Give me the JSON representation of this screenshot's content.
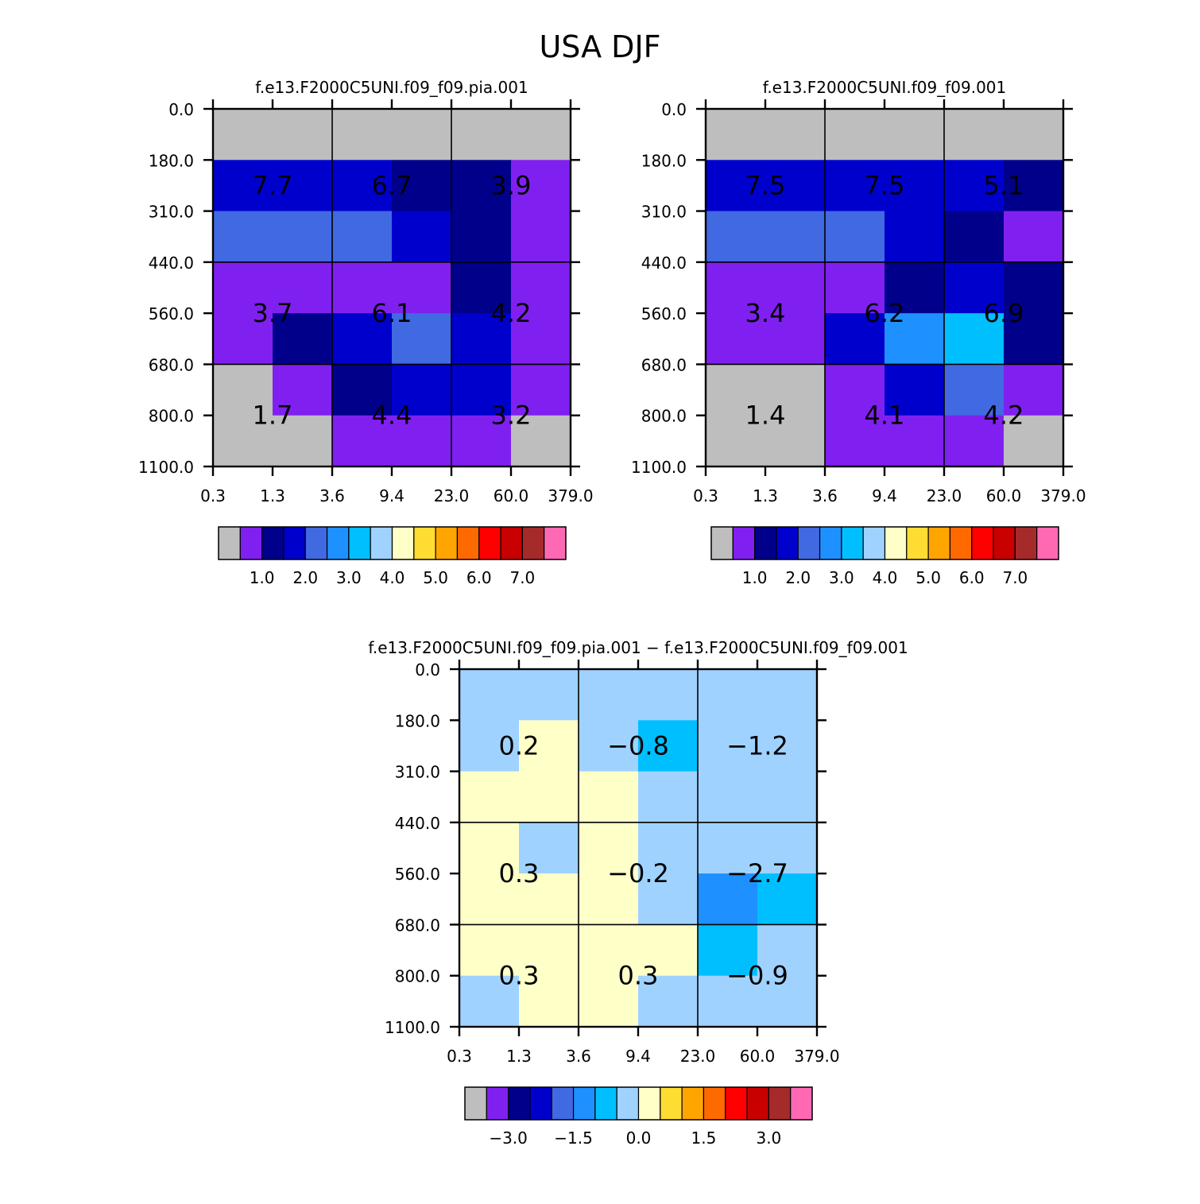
{
  "figure_title": "USA DJF",
  "chart_data": [
    {
      "id": "panel-a",
      "type": "heatmap",
      "title": "f.e13.F2000C5UNI.f09_f09.pia.001",
      "x_ticks": [
        "0.3",
        "1.3",
        "3.6",
        "9.4",
        "23.0",
        "60.0",
        "379.0"
      ],
      "y_ticks": [
        "0.0",
        "180.0",
        "310.0",
        "440.0",
        "560.0",
        "680.0",
        "800.0",
        "1100.0"
      ],
      "cell_colors": [
        [
          "#bebebe",
          "#bebebe",
          "#bebebe",
          "#bebebe",
          "#bebebe",
          "#bebebe"
        ],
        [
          "#0000cd",
          "#0000cd",
          "#0000cd",
          "#00008b",
          "#00008b",
          "#8020f0"
        ],
        [
          "#4169e1",
          "#4169e1",
          "#4169e1",
          "#0000cd",
          "#00008b",
          "#8020f0"
        ],
        [
          "#8020f0",
          "#8020f0",
          "#8020f0",
          "#8020f0",
          "#00008b",
          "#8020f0"
        ],
        [
          "#8020f0",
          "#00008b",
          "#0000cd",
          "#4169e1",
          "#0000cd",
          "#8020f0"
        ],
        [
          "#bebebe",
          "#8020f0",
          "#00008b",
          "#0000cd",
          "#0000cd",
          "#8020f0"
        ],
        [
          "#bebebe",
          "#bebebe",
          "#8020f0",
          "#8020f0",
          "#8020f0",
          "#bebebe"
        ]
      ],
      "box_values": [
        [
          "7.7",
          "6.7",
          "3.9"
        ],
        [
          "3.7",
          "6.1",
          "4.2"
        ],
        [
          "1.7",
          "4.4",
          "3.2"
        ]
      ],
      "colorbar": {
        "colors": [
          "#bebebe",
          "#8020f0",
          "#00008b",
          "#0000cd",
          "#4169e1",
          "#1e90ff",
          "#00bfff",
          "#a0d2ff",
          "#ffffc8",
          "#ffdc32",
          "#ffa500",
          "#ff6a00",
          "#ff0000",
          "#c80000",
          "#a52a2a",
          "#ff69b4"
        ],
        "tick_labels": [
          "1.0",
          "2.0",
          "3.0",
          "4.0",
          "5.0",
          "6.0",
          "7.0"
        ]
      }
    },
    {
      "id": "panel-b",
      "type": "heatmap",
      "title": "f.e13.F2000C5UNI.f09_f09.001",
      "x_ticks": [
        "0.3",
        "1.3",
        "3.6",
        "9.4",
        "23.0",
        "60.0",
        "379.0"
      ],
      "y_ticks": [
        "0.0",
        "180.0",
        "310.0",
        "440.0",
        "560.0",
        "680.0",
        "800.0",
        "1100.0"
      ],
      "cell_colors": [
        [
          "#bebebe",
          "#bebebe",
          "#bebebe",
          "#bebebe",
          "#bebebe",
          "#bebebe"
        ],
        [
          "#0000cd",
          "#0000cd",
          "#0000cd",
          "#0000cd",
          "#0000cd",
          "#00008b"
        ],
        [
          "#4169e1",
          "#4169e1",
          "#4169e1",
          "#0000cd",
          "#00008b",
          "#8020f0"
        ],
        [
          "#8020f0",
          "#8020f0",
          "#8020f0",
          "#00008b",
          "#0000cd",
          "#00008b"
        ],
        [
          "#8020f0",
          "#8020f0",
          "#0000cd",
          "#1e90ff",
          "#00bfff",
          "#00008b"
        ],
        [
          "#bebebe",
          "#bebebe",
          "#8020f0",
          "#0000cd",
          "#4169e1",
          "#8020f0"
        ],
        [
          "#bebebe",
          "#bebebe",
          "#8020f0",
          "#8020f0",
          "#8020f0",
          "#bebebe"
        ]
      ],
      "box_values": [
        [
          "7.5",
          "7.5",
          "5.1"
        ],
        [
          "3.4",
          "6.2",
          "6.9"
        ],
        [
          "1.4",
          "4.1",
          "4.2"
        ]
      ],
      "colorbar": {
        "colors": [
          "#bebebe",
          "#8020f0",
          "#00008b",
          "#0000cd",
          "#4169e1",
          "#1e90ff",
          "#00bfff",
          "#a0d2ff",
          "#ffffc8",
          "#ffdc32",
          "#ffa500",
          "#ff6a00",
          "#ff0000",
          "#c80000",
          "#a52a2a",
          "#ff69b4"
        ],
        "tick_labels": [
          "1.0",
          "2.0",
          "3.0",
          "4.0",
          "5.0",
          "6.0",
          "7.0"
        ]
      }
    },
    {
      "id": "panel-diff",
      "type": "heatmap",
      "title": "f.e13.F2000C5UNI.f09_f09.pia.001 − f.e13.F2000C5UNI.f09_f09.001",
      "x_ticks": [
        "0.3",
        "1.3",
        "3.6",
        "9.4",
        "23.0",
        "60.0",
        "379.0"
      ],
      "y_ticks": [
        "0.0",
        "180.0",
        "310.0",
        "440.0",
        "560.0",
        "680.0",
        "800.0",
        "1100.0"
      ],
      "cell_colors": [
        [
          "#a0d2ff",
          "#a0d2ff",
          "#a0d2ff",
          "#a0d2ff",
          "#a0d2ff",
          "#a0d2ff"
        ],
        [
          "#a0d2ff",
          "#ffffc8",
          "#a0d2ff",
          "#00bfff",
          "#a0d2ff",
          "#a0d2ff"
        ],
        [
          "#ffffc8",
          "#ffffc8",
          "#ffffc8",
          "#a0d2ff",
          "#a0d2ff",
          "#a0d2ff"
        ],
        [
          "#ffffc8",
          "#a0d2ff",
          "#ffffc8",
          "#a0d2ff",
          "#a0d2ff",
          "#a0d2ff"
        ],
        [
          "#ffffc8",
          "#ffffc8",
          "#ffffc8",
          "#a0d2ff",
          "#1e90ff",
          "#00bfff"
        ],
        [
          "#ffffc8",
          "#ffffc8",
          "#ffffc8",
          "#ffffc8",
          "#00bfff",
          "#a0d2ff"
        ],
        [
          "#a0d2ff",
          "#ffffc8",
          "#ffffc8",
          "#a0d2ff",
          "#a0d2ff",
          "#a0d2ff"
        ]
      ],
      "box_values": [
        [
          "0.2",
          "−0.8",
          "−1.2"
        ],
        [
          "0.3",
          "−0.2",
          "−2.7"
        ],
        [
          "0.3",
          "0.3",
          "−0.9"
        ]
      ],
      "colorbar": {
        "colors": [
          "#bebebe",
          "#8020f0",
          "#00008b",
          "#0000cd",
          "#4169e1",
          "#1e90ff",
          "#00bfff",
          "#a0d2ff",
          "#ffffc8",
          "#ffdc32",
          "#ffa500",
          "#ff6a00",
          "#ff0000",
          "#c80000",
          "#a52a2a",
          "#ff69b4"
        ],
        "tick_labels": [
          "−3.0",
          "−1.5",
          "0.0",
          "1.5",
          "3.0"
        ]
      }
    }
  ]
}
